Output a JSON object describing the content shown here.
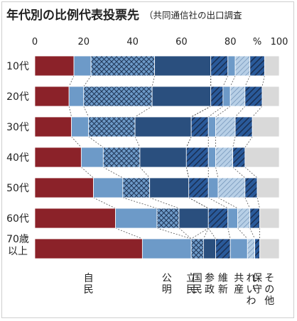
{
  "chart_data": {
    "type": "bar",
    "stacked": true,
    "orientation": "horizontal",
    "title": "年代別の比例代表投票先",
    "subtitle": "（共同通信社の出口調査",
    "xlim": [
      0,
      100
    ],
    "x_ticks": [
      "0",
      "20",
      "40",
      "60",
      "80",
      "%",
      "100"
    ],
    "categories": [
      "10代",
      "20代",
      "30代",
      "40代",
      "50代",
      "60代",
      "70歳以上"
    ],
    "series": [
      {
        "name": "自民",
        "color": "#8b2229",
        "pattern": "solid",
        "values": [
          16,
          14,
          15,
          19,
          24,
          33,
          44
        ]
      },
      {
        "name": "公明",
        "color": "#6d9ac8",
        "pattern": "solid",
        "values": [
          7,
          6,
          7,
          9,
          12,
          17,
          20
        ]
      },
      {
        "name": "立民",
        "color": "#6d9ac8",
        "pattern": "crosshatch",
        "values": [
          26,
          28,
          19,
          15,
          11,
          9,
          0
        ]
      },
      {
        "name": "",
        "color": "#2a4f7e",
        "pattern": "solid",
        "values": [
          23,
          24,
          23,
          19,
          16,
          12,
          0
        ]
      },
      {
        "name": "国民",
        "color": "#6d9ac8",
        "pattern": "crosshatch",
        "values": [
          0,
          0,
          0,
          0,
          0,
          0,
          5
        ]
      },
      {
        "name": "参政",
        "color": "#2a4f7e",
        "pattern": "solid",
        "values": [
          0,
          0,
          0,
          0,
          0,
          0,
          5
        ]
      },
      {
        "name": "維新",
        "color": "#2a5a9a",
        "pattern": "diagonal-bold",
        "values": [
          7,
          5,
          7,
          9,
          8,
          8,
          6
        ]
      },
      {
        "name": "共産",
        "color": "#6d9ac8",
        "pattern": "solid",
        "values": [
          3,
          3,
          3,
          3,
          4,
          4,
          7
        ]
      },
      {
        "name": "れいわ",
        "color": "#a8c4e0",
        "pattern": "diagonal-light",
        "values": [
          6,
          6,
          8,
          7,
          11,
          5,
          3
        ]
      },
      {
        "name": "保守",
        "color": "#2a5a9a",
        "pattern": "diagonal-bold",
        "values": [
          6,
          7,
          7,
          5,
          5,
          4,
          2
        ]
      },
      {
        "name": "その他",
        "color": "#d9d9d9",
        "pattern": "solid",
        "values": [
          6,
          7,
          11,
          14,
          9,
          8,
          8
        ]
      }
    ],
    "grid": false
  }
}
